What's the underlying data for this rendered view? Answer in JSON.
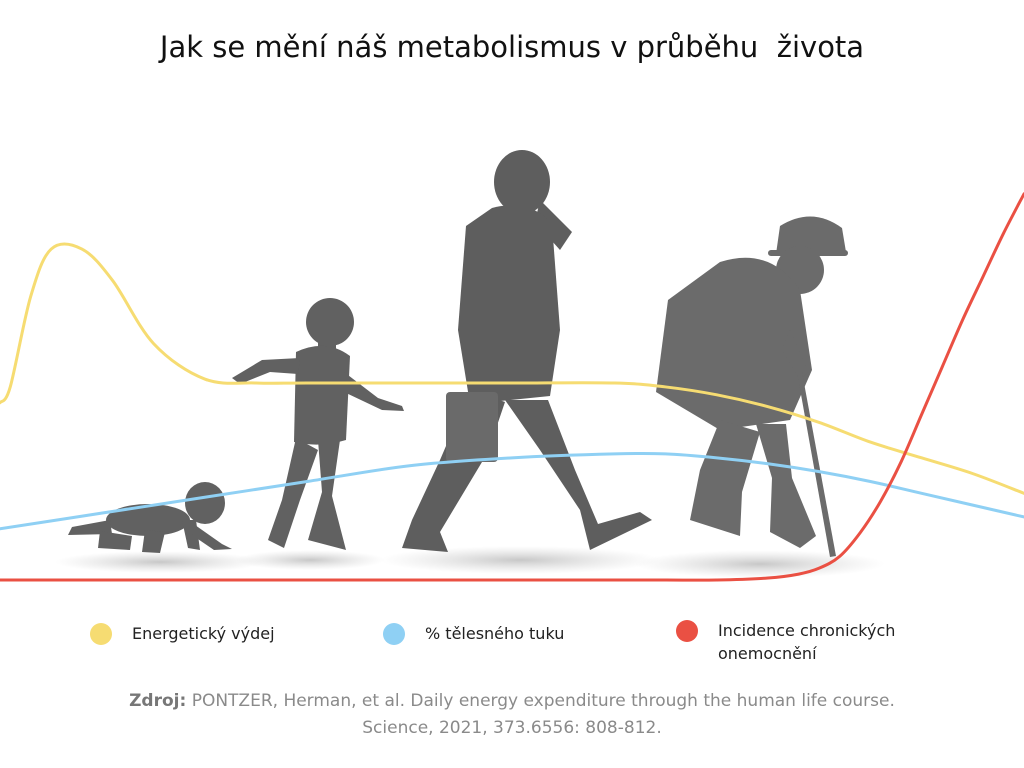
{
  "title": "Jak se mění náš metabolismus v průběhu  života",
  "chart_data": {
    "type": "line",
    "grid": false,
    "legend_position": "bottom",
    "series": [
      {
        "name": "Energetický výdej",
        "color": "#f6dc72",
        "x": [
          0,
          1,
          3,
          5,
          8,
          11,
          15,
          20,
          25,
          30,
          40,
          50,
          60,
          65,
          70,
          75,
          80,
          85,
          90,
          95,
          100
        ],
        "values": [
          45,
          49,
          72,
          84,
          84,
          76,
          60,
          51,
          50,
          50,
          50,
          50,
          50,
          49,
          47,
          44,
          40,
          35,
          31,
          27,
          22
        ]
      },
      {
        "name": "% tělesného tuku",
        "color": "#8fd0f4",
        "x": [
          0,
          10,
          20,
          30,
          40,
          50,
          60,
          65,
          70,
          75,
          80,
          85,
          90,
          95,
          100
        ],
        "values": [
          13,
          17,
          21,
          25,
          29,
          31,
          32,
          32,
          31,
          29.5,
          27.5,
          25,
          22,
          19,
          16
        ]
      },
      {
        "name": "Incidence chronických onemocnění",
        "color": "#ea5043",
        "x": [
          0,
          20,
          40,
          60,
          65,
          70,
          75,
          78,
          80,
          82,
          84,
          86,
          88,
          90,
          92,
          94,
          96,
          98,
          100
        ],
        "values": [
          0,
          0,
          0,
          0,
          0,
          0,
          0.5,
          1.5,
          3,
          6,
          12,
          20,
          30,
          42,
          54,
          66,
          77,
          88,
          98
        ]
      }
    ]
  },
  "legend": [
    {
      "label": "Energetický výdej",
      "color": "#f6dc72"
    },
    {
      "label": "% tělesného tuku",
      "color": "#8fd0f4"
    },
    {
      "label": "Incidence chronických onemocnění",
      "color": "#ea5043"
    }
  ],
  "source": {
    "label": "Zdroj:",
    "line1": "PONTZER, Herman, et al. Daily energy expenditure through the human life course.",
    "line2": "Science, 2021, 373.6556: 808-812."
  }
}
